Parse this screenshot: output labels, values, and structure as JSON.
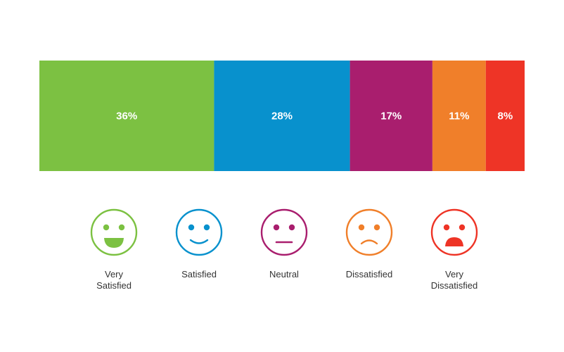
{
  "chart_data": {
    "type": "bar",
    "orientation": "horizontal-stacked",
    "title": "",
    "xlabel": "",
    "ylabel": "",
    "categories": [
      "Very Satisfied",
      "Satisfied",
      "Neutral",
      "Dissatisfied",
      "Very Dissatisfied"
    ],
    "values": [
      36,
      28,
      17,
      11,
      8
    ],
    "value_labels": [
      "36%",
      "28%",
      "17%",
      "11%",
      "8%"
    ],
    "xlim": [
      0,
      100
    ],
    "grid": false,
    "legend": "below (emoji faces with labels)",
    "colors": [
      "#7cc142",
      "#0891cd",
      "#a91e6e",
      "#f07f2a",
      "#ee3426"
    ],
    "faces": [
      {
        "label_lines": [
          "Very",
          "Satisfied"
        ],
        "expression": "big-smile-icon"
      },
      {
        "label_lines": [
          "Satisfied"
        ],
        "expression": "smile-icon"
      },
      {
        "label_lines": [
          "Neutral"
        ],
        "expression": "neutral-icon"
      },
      {
        "label_lines": [
          "Dissatisfied"
        ],
        "expression": "frown-icon"
      },
      {
        "label_lines": [
          "Very",
          "Dissatisfied"
        ],
        "expression": "sad-open-mouth-icon"
      }
    ]
  }
}
